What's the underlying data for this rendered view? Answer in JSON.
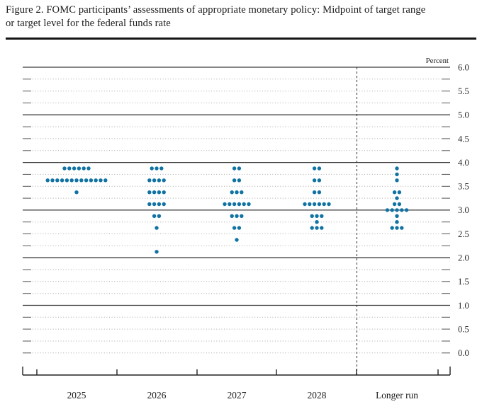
{
  "figure": {
    "title_line1": "Figure 2. FOMC participants’ assessments of appropriate monetary policy: Midpoint of target range",
    "title_line2": "or target level for the federal funds rate"
  },
  "chart_data": {
    "type": "scatter",
    "subtype": "dot-plot",
    "title": "Figure 2. FOMC participants’ assessments of appropriate monetary policy: Midpoint of target range or target level for the federal funds rate",
    "ylabel": "Percent",
    "ylim": [
      0.0,
      6.0
    ],
    "y_label_step": 0.5,
    "y_grid_step": 0.25,
    "solid_lines_at": [
      1.0,
      2.0,
      3.0,
      4.0,
      5.0,
      6.0
    ],
    "y_tick_labels": [
      "6.0",
      "5.5",
      "5.0",
      "4.5",
      "4.0",
      "3.5",
      "3.0",
      "2.5",
      "2.0",
      "1.5",
      "1.0",
      "0.5",
      "0.0"
    ],
    "categories": [
      "2025",
      "2026",
      "2027",
      "2028",
      "Longer run"
    ],
    "separator_before_category": "Longer run",
    "grid": true,
    "legend": "none",
    "dot_color": "#1173a3",
    "series": [
      {
        "category": "2025",
        "dots": [
          {
            "rate": 3.875,
            "count": 6
          },
          {
            "rate": 3.625,
            "count": 13
          },
          {
            "rate": 3.375,
            "count": 1
          }
        ]
      },
      {
        "category": "2026",
        "dots": [
          {
            "rate": 3.875,
            "count": 3
          },
          {
            "rate": 3.625,
            "count": 4
          },
          {
            "rate": 3.375,
            "count": 4
          },
          {
            "rate": 3.125,
            "count": 4
          },
          {
            "rate": 2.875,
            "count": 2
          },
          {
            "rate": 2.625,
            "count": 1
          },
          {
            "rate": 2.125,
            "count": 1
          }
        ]
      },
      {
        "category": "2027",
        "dots": [
          {
            "rate": 3.875,
            "count": 2
          },
          {
            "rate": 3.625,
            "count": 2
          },
          {
            "rate": 3.375,
            "count": 3
          },
          {
            "rate": 3.125,
            "count": 6
          },
          {
            "rate": 2.875,
            "count": 3
          },
          {
            "rate": 2.625,
            "count": 2
          },
          {
            "rate": 2.375,
            "count": 1
          }
        ]
      },
      {
        "category": "2028",
        "dots": [
          {
            "rate": 3.875,
            "count": 2
          },
          {
            "rate": 3.625,
            "count": 2
          },
          {
            "rate": 3.375,
            "count": 2
          },
          {
            "rate": 3.125,
            "count": 6
          },
          {
            "rate": 2.875,
            "count": 3
          },
          {
            "rate": 2.75,
            "count": 1
          },
          {
            "rate": 2.625,
            "count": 3
          }
        ]
      },
      {
        "category": "Longer run",
        "dots": [
          {
            "rate": 3.875,
            "count": 1
          },
          {
            "rate": 3.75,
            "count": 1
          },
          {
            "rate": 3.625,
            "count": 1
          },
          {
            "rate": 3.375,
            "count": 2
          },
          {
            "rate": 3.25,
            "count": 1
          },
          {
            "rate": 3.125,
            "count": 2
          },
          {
            "rate": 3.0,
            "count": 5
          },
          {
            "rate": 2.875,
            "count": 1
          },
          {
            "rate": 2.75,
            "count": 1
          },
          {
            "rate": 2.625,
            "count": 3
          }
        ]
      }
    ]
  }
}
